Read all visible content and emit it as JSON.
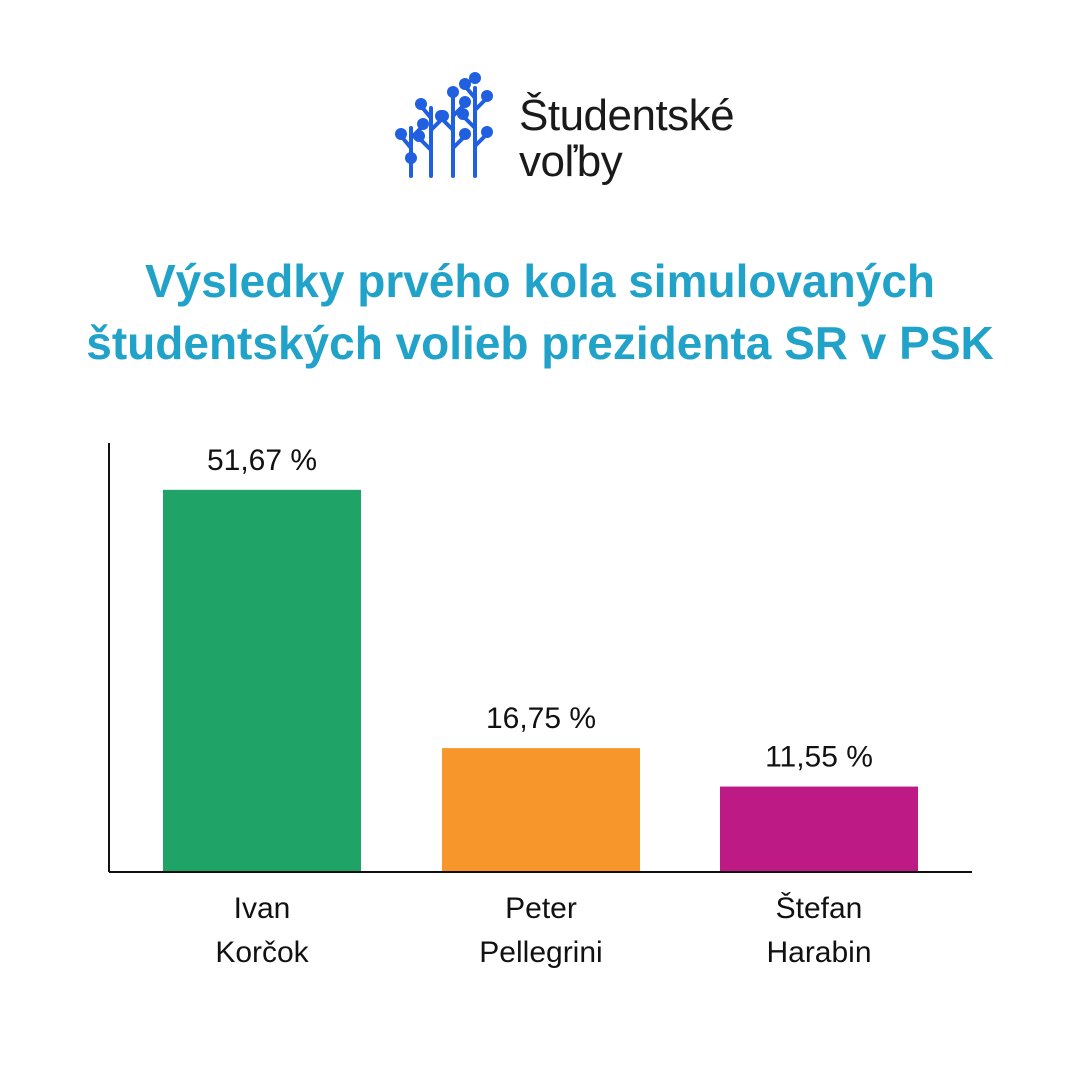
{
  "logo": {
    "line1": "Študentské",
    "line2": "voľby",
    "icon": "tree-circuit-icon",
    "color": "#1f5fe0"
  },
  "title": {
    "line1": "Výsledky prvého kola simulovaných",
    "line2": "študentských volieb prezidenta SR v PSK",
    "color": "#21a3c9"
  },
  "chart_data": {
    "type": "bar",
    "categories": [
      [
        "Ivan",
        "Korčok"
      ],
      [
        "Peter",
        "Pellegrini"
      ],
      [
        "Štefan",
        "Harabin"
      ]
    ],
    "values": [
      51.67,
      16.75,
      11.55
    ],
    "value_labels": [
      "51,67 %",
      "16,75 %",
      "11,55 %"
    ],
    "colors": [
      "#1fa367",
      "#f7962b",
      "#bd1a86"
    ],
    "ylim": [
      0,
      58
    ],
    "grid": false,
    "legend": "none",
    "xlabel": "",
    "ylabel": ""
  }
}
